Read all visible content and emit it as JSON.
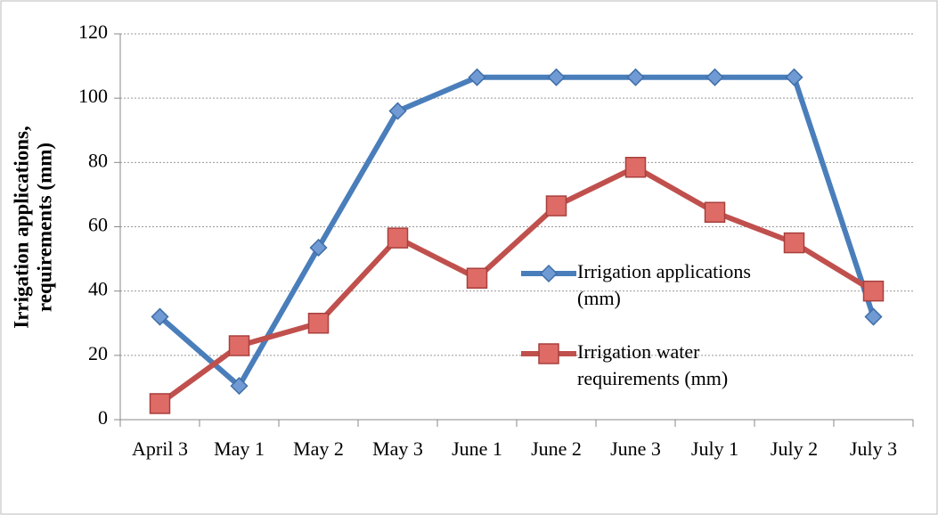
{
  "chart_data": {
    "type": "line",
    "ylabel": [
      "Irrigation applications,",
      "requirements (mm)"
    ],
    "categories": [
      "April 3",
      "May 1",
      "May 2",
      "May 3",
      "June 1",
      "June 2",
      "June 3",
      "July 1",
      "July 2",
      "July 3"
    ],
    "series": [
      {
        "name": "Irrigation applications (mm)",
        "color": "#4a7ebb",
        "marker": "diamond",
        "values": [
          32,
          10.5,
          53.5,
          96,
          106.5,
          106.5,
          106.5,
          106.5,
          106.5,
          32
        ]
      },
      {
        "name": "Irrigation water requirements (mm)",
        "color": "#c0504d",
        "marker": "square",
        "values": [
          5,
          23,
          30,
          56.5,
          44,
          66.5,
          78.5,
          64.5,
          55,
          40
        ]
      }
    ],
    "ylim": [
      0,
      120
    ],
    "yticks": [
      0,
      20,
      40,
      60,
      80,
      100,
      120
    ],
    "grid": true
  }
}
